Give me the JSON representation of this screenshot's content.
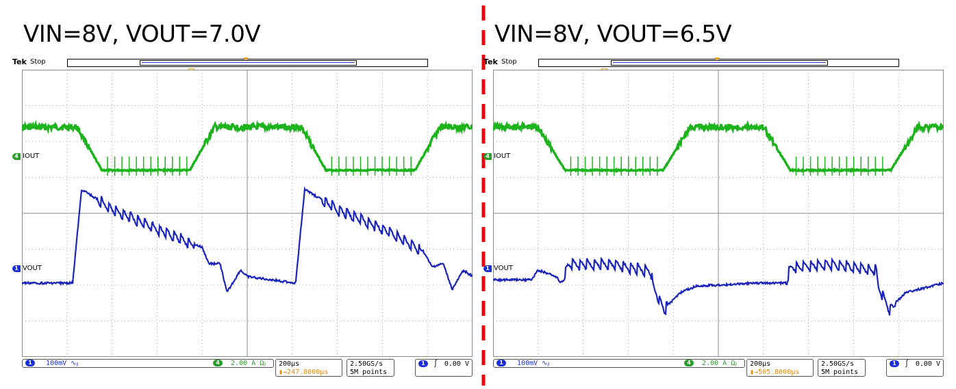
{
  "colors": {
    "iout": "#1db31d",
    "vout": "#1a24b8",
    "grid": "#8a8a8a",
    "trigger": "#f5a623",
    "divider": "#e8000b"
  },
  "scope_ui": {
    "logo": "Tek",
    "state": "Stop",
    "ch_iout_label": "IOUT",
    "ch_vout_label": "VOUT",
    "ch1_number": "1",
    "ch4_number": "4",
    "ch1_scale": "100mV",
    "ch1_coupling_icon": "ac-bw-icon",
    "ch4_scale": "2.00 A",
    "ch4_coupling_icon": "ohm-bw-icon",
    "timebase": "200µs",
    "sample_rate": "2.50GS/s",
    "record_length": "5M points",
    "trigger_source": "1",
    "trigger_slope_icon": "rising-edge-icon",
    "trigger_level": "0.00 V",
    "trigger_badge": "T"
  },
  "panels": [
    {
      "title": "VIN=8V, VOUT=7.0V",
      "trigger_delay": "247.8000µs"
    },
    {
      "title": "VIN=8V, VOUT=6.5V",
      "trigger_delay": "505.8000µs"
    }
  ],
  "chart_data": [
    {
      "type": "line",
      "title": "VIN=8V, VOUT=7.0V",
      "x_unit": "µs",
      "x": [
        0,
        130,
        228,
        455,
        535,
        585,
        910,
        993,
        1230,
        1385,
        1500,
        1610,
        1738,
        2000
      ],
      "xlim": [
        0,
        2000
      ],
      "x_div": 200,
      "series": [
        {
          "name": "IOUT",
          "unit": "A",
          "scale_per_div": "2.00 A",
          "points": [
            [
              0,
              2.4
            ],
            [
              245,
              2.4
            ],
            [
              355,
              0
            ],
            [
              745,
              0
            ],
            [
              855,
              2.4
            ],
            [
              1240,
              2.4
            ],
            [
              1350,
              0
            ],
            [
              1745,
              0
            ],
            [
              1855,
              2.4
            ],
            [
              2000,
              2.4
            ]
          ]
        },
        {
          "name": "VOUT",
          "unit": "mV",
          "scale_per_div": "100mV",
          "points": [
            [
              0,
              0
            ],
            [
              225,
              0
            ],
            [
              265,
              290
            ],
            [
              400,
              230
            ],
            [
              600,
              170
            ],
            [
              800,
              110
            ],
            [
              830,
              60
            ],
            [
              880,
              60
            ],
            [
              910,
              -30
            ],
            [
              970,
              40
            ],
            [
              1000,
              20
            ],
            [
              1215,
              0
            ],
            [
              1255,
              290
            ],
            [
              1400,
              230
            ],
            [
              1600,
              170
            ],
            [
              1780,
              100
            ],
            [
              1820,
              50
            ],
            [
              1870,
              60
            ],
            [
              1910,
              -20
            ],
            [
              1960,
              40
            ],
            [
              2000,
              20
            ]
          ]
        }
      ]
    },
    {
      "type": "line",
      "title": "VIN=8V, VOUT=6.5V",
      "xlim": [
        0,
        2000
      ],
      "x_div": 200,
      "series": [
        {
          "name": "IOUT",
          "unit": "A",
          "scale_per_div": "2.00 A",
          "points": [
            [
              0,
              2.4
            ],
            [
              200,
              2.4
            ],
            [
              320,
              0
            ],
            [
              755,
              0
            ],
            [
              875,
              2.4
            ],
            [
              1200,
              2.4
            ],
            [
              1320,
              0
            ],
            [
              1765,
              0
            ],
            [
              1885,
              2.4
            ],
            [
              2000,
              2.4
            ]
          ]
        },
        {
          "name": "VOUT",
          "unit": "mV",
          "scale_per_div": "100mV",
          "points": [
            [
              0,
              10
            ],
            [
              170,
              10
            ],
            [
              200,
              40
            ],
            [
              280,
              20
            ],
            [
              300,
              0
            ],
            [
              335,
              60
            ],
            [
              520,
              60
            ],
            [
              700,
              40
            ],
            [
              710,
              -10
            ],
            [
              760,
              -80
            ],
            [
              830,
              -30
            ],
            [
              900,
              -10
            ],
            [
              1150,
              0
            ],
            [
              1300,
              0
            ],
            [
              1320,
              50
            ],
            [
              1500,
              60
            ],
            [
              1700,
              40
            ],
            [
              1710,
              -10
            ],
            [
              1760,
              -80
            ],
            [
              1830,
              -30
            ],
            [
              2000,
              0
            ]
          ]
        }
      ]
    }
  ]
}
